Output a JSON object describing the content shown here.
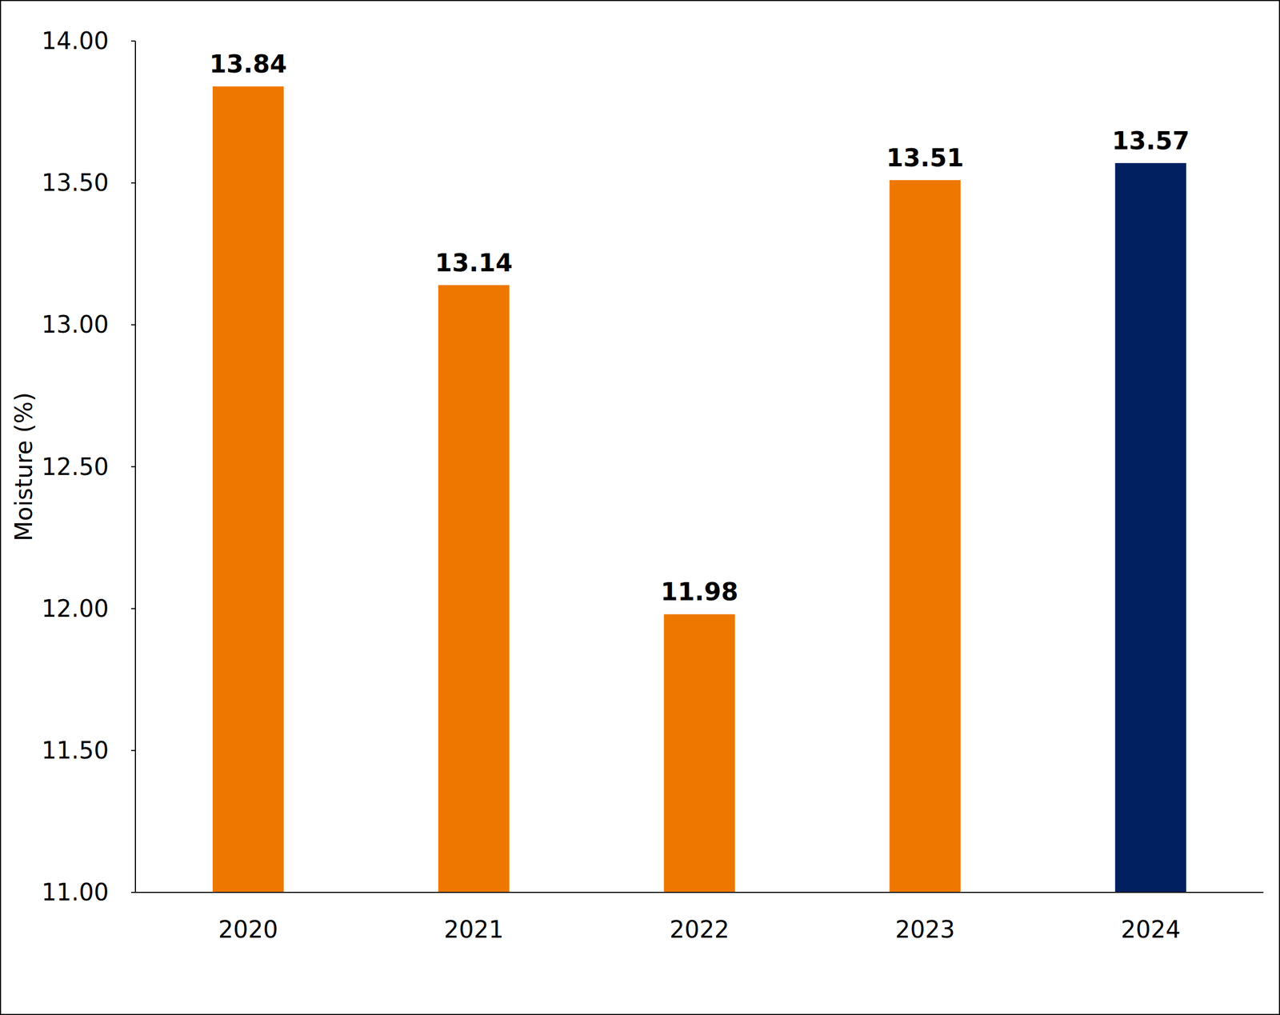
{
  "chart_data": {
    "type": "bar",
    "y_label": "Moisture (%)",
    "categories": [
      "2020",
      "2021",
      "2022",
      "2023",
      "2024"
    ],
    "values": [
      13.84,
      13.14,
      11.98,
      13.51,
      13.57
    ],
    "colors": [
      "#ee7700",
      "#ee7700",
      "#ee7700",
      "#ee7700",
      "#002060"
    ],
    "ylim": [
      11,
      14
    ],
    "yticks": [
      {
        "value": 11,
        "label": "11.00"
      },
      {
        "value": 11.5,
        "label": "11.50"
      },
      {
        "value": 12,
        "label": "12.00"
      },
      {
        "value": 12.5,
        "label": "12.50"
      },
      {
        "value": 13,
        "label": "13.00"
      },
      {
        "value": 13.5,
        "label": "13.50"
      },
      {
        "value": 14,
        "label": "14.00"
      }
    ],
    "grid": false,
    "data_labels": true
  }
}
